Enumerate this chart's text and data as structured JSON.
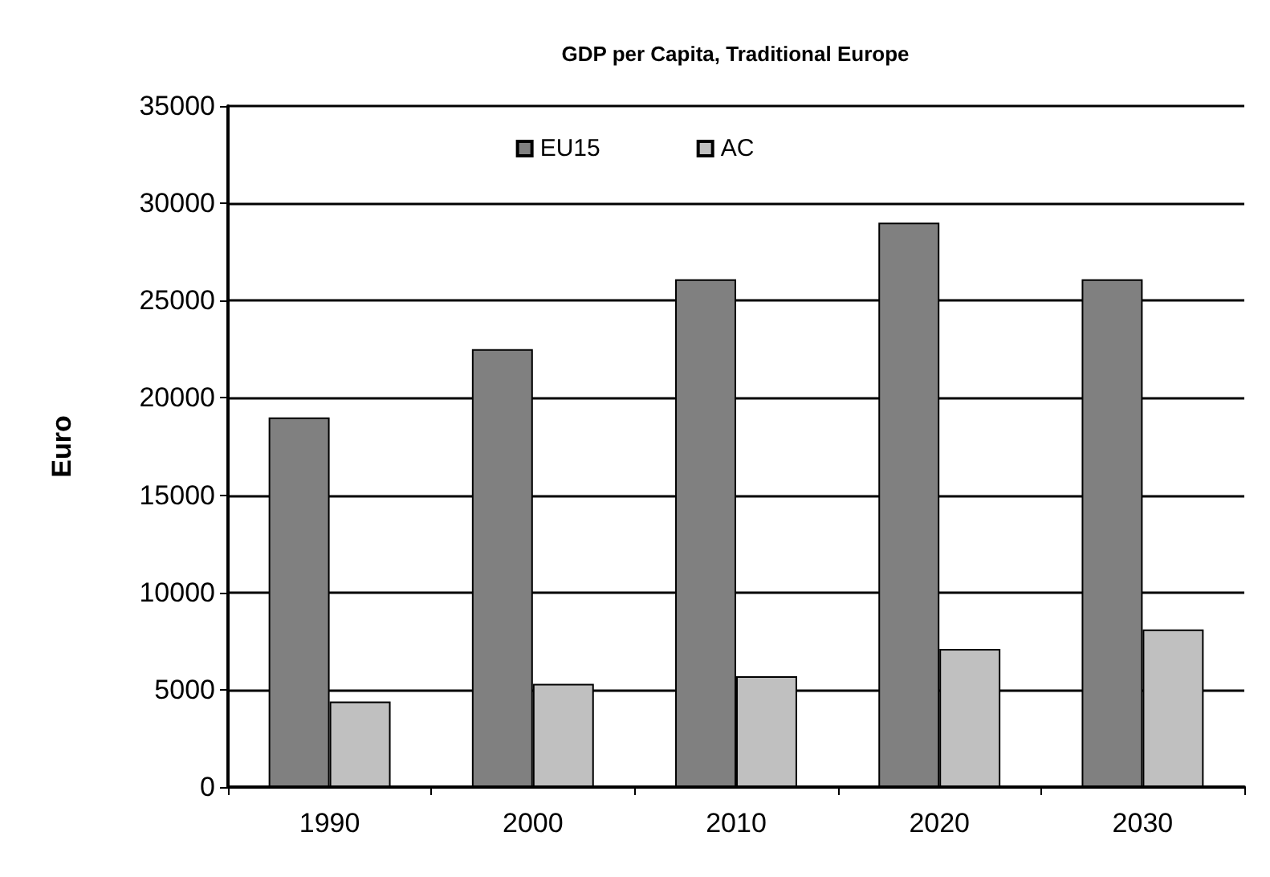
{
  "chart_data": {
    "type": "bar",
    "title": "GDP per Capita, Traditional Europe",
    "ylabel": "Euro",
    "categories": [
      "1990",
      "2000",
      "2010",
      "2020",
      "2030"
    ],
    "series": [
      {
        "name": "EU15",
        "color": "#808080",
        "values": [
          19000,
          22500,
          26100,
          29000,
          26100
        ]
      },
      {
        "name": "AC",
        "color": "#c0c0c0",
        "values": [
          4400,
          5300,
          5700,
          7100,
          8100
        ]
      }
    ],
    "ylim": [
      0,
      35000
    ],
    "yticks": [
      0,
      5000,
      10000,
      15000,
      20000,
      25000,
      30000,
      35000
    ],
    "grid": "y",
    "legend": "top"
  }
}
